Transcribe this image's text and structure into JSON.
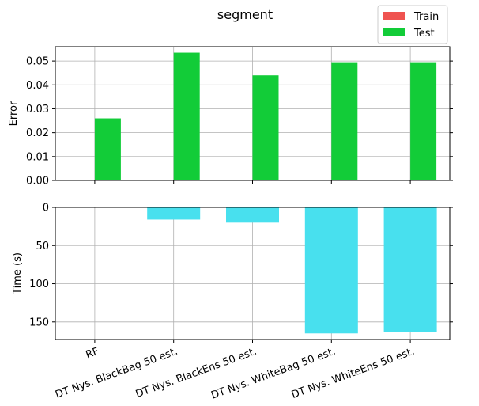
{
  "chart_data": [
    {
      "type": "bar",
      "title": "segment",
      "xlabel": "",
      "ylabel": "Error",
      "ylim": [
        0,
        0.056
      ],
      "yticks": [
        "0.00",
        "0.01",
        "0.02",
        "0.03",
        "0.04",
        "0.05"
      ],
      "grid": true,
      "legend_position": "top-right",
      "categories": [
        "RF",
        "DT Nys. BlackBag 50 est.",
        "DT Nys. BlackEns 50 est.",
        "DT Nys. WhiteBag 50 est.",
        "DT Nys. WhiteEns 50 est."
      ],
      "series": [
        {
          "name": "Train",
          "color": "#ef5350",
          "values": [
            0,
            0,
            0,
            0,
            0
          ]
        },
        {
          "name": "Test",
          "color": "#12cc38",
          "values": [
            0.026,
            0.0535,
            0.044,
            0.0495,
            0.0495
          ]
        }
      ]
    },
    {
      "type": "bar",
      "xlabel": "",
      "ylabel": "Time (s)",
      "ylim": [
        173,
        0
      ],
      "inverted_y": true,
      "yticks": [
        "0",
        "50",
        "100",
        "150"
      ],
      "grid": true,
      "categories": [
        "RF",
        "DT Nys. BlackBag 50 est.",
        "DT Nys. BlackEns 50 est.",
        "DT Nys. WhiteBag 50 est.",
        "DT Nys. WhiteEns 50 est."
      ],
      "series": [
        {
          "color": "#48e0ee",
          "values": [
            0,
            16,
            20,
            165,
            163
          ]
        }
      ]
    }
  ]
}
